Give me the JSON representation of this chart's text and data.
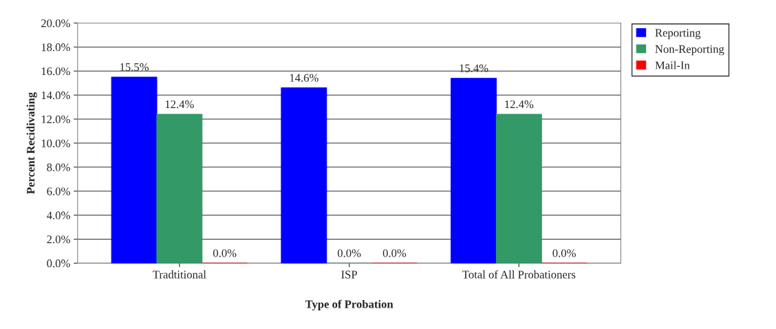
{
  "chart_data": {
    "type": "bar",
    "xlabel": "Type of Probation",
    "ylabel": "Percent Recidivating",
    "categories": [
      "Tradtitional",
      "ISP",
      "Total of All Probationers"
    ],
    "series": [
      {
        "name": "Reporting",
        "color": "#0000ff",
        "values": [
          15.5,
          14.6,
          15.4
        ],
        "value_labels": [
          "15.5%",
          "14.6%",
          "15.4%"
        ]
      },
      {
        "name": "Non-Reporting",
        "color": "#339966",
        "values": [
          12.4,
          0.0,
          12.4
        ],
        "value_labels": [
          "12.4%",
          "0.0%",
          "12.4%"
        ]
      },
      {
        "name": "Mail-In",
        "color": "#ff0000",
        "values": [
          0.0,
          0.0,
          0.0
        ],
        "value_labels": [
          "0.0%",
          "0.0%",
          "0.0%"
        ]
      }
    ],
    "ylim": [
      0,
      20
    ],
    "yticks": [
      {
        "value": 0,
        "label": "0.0%"
      },
      {
        "value": 2,
        "label": "2.0%"
      },
      {
        "value": 4,
        "label": "4.0%"
      },
      {
        "value": 6,
        "label": "6.0%"
      },
      {
        "value": 8,
        "label": "8.0%"
      },
      {
        "value": 10,
        "label": "10.0%"
      },
      {
        "value": 12,
        "label": "12.0%"
      },
      {
        "value": 14,
        "label": "14.0%"
      },
      {
        "value": 16,
        "label": "16.0%"
      },
      {
        "value": 18,
        "label": "18.0%"
      },
      {
        "value": 20,
        "label": "20.0%"
      }
    ],
    "grid": "y",
    "legend": "top right"
  }
}
